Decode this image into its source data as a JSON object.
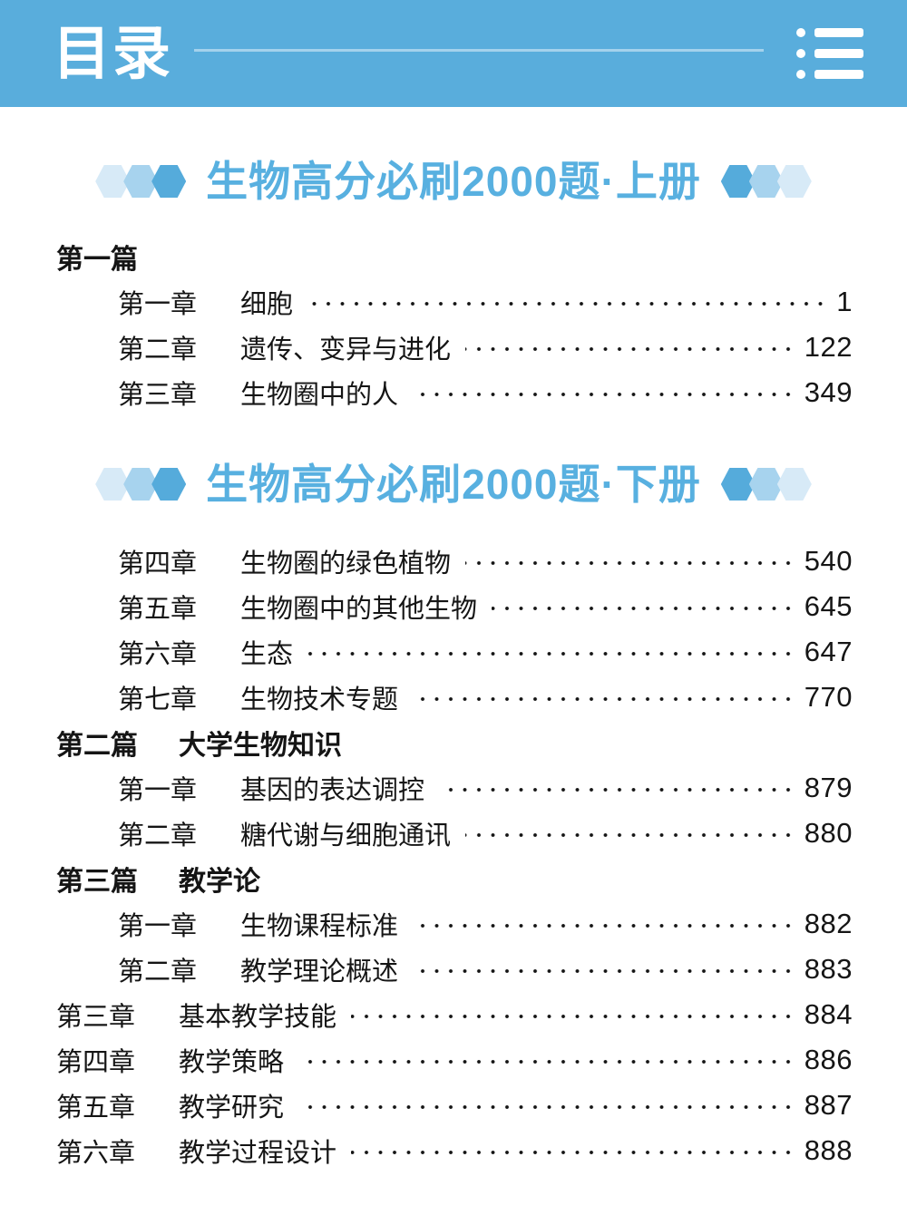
{
  "header": {
    "title": "目录",
    "icon": "list-icon"
  },
  "colors": {
    "header_bg": "#59ADDC",
    "title_blue": "#58B0E0",
    "hex_light": "#D7EAF7",
    "hex_medium": "#A7D3EE",
    "hex_dark": "#55ABDB",
    "ink": "#151515"
  },
  "decoration": {
    "left_hexagons": [
      "light",
      "medium",
      "dark"
    ],
    "right_hexagons": [
      "dark",
      "medium",
      "light"
    ]
  },
  "volumes": [
    {
      "title": "生物高分必刷2000题·上册",
      "entries": [
        {
          "type": "part",
          "indent": false,
          "label": "第一篇",
          "title": "",
          "page": ""
        },
        {
          "type": "chapter",
          "indent": true,
          "label": "第一章",
          "title": "细胞",
          "page": "1"
        },
        {
          "type": "chapter",
          "indent": true,
          "label": "第二章",
          "title": "遗传、变异与进化",
          "page": "122"
        },
        {
          "type": "chapter",
          "indent": true,
          "label": "第三章",
          "title": "生物圈中的人",
          "page": "349"
        }
      ]
    },
    {
      "title": "生物高分必刷2000题·下册",
      "entries": [
        {
          "type": "chapter",
          "indent": true,
          "label": "第四章",
          "title": "生物圈的绿色植物",
          "page": "540"
        },
        {
          "type": "chapter",
          "indent": true,
          "label": "第五章",
          "title": "生物圈中的其他生物",
          "page": "645"
        },
        {
          "type": "chapter",
          "indent": true,
          "label": "第六章",
          "title": "生态",
          "page": "647"
        },
        {
          "type": "chapter",
          "indent": true,
          "label": "第七章",
          "title": "生物技术专题",
          "page": "770"
        },
        {
          "type": "part",
          "indent": false,
          "label": "第二篇",
          "title": "大学生物知识",
          "page": ""
        },
        {
          "type": "chapter",
          "indent": true,
          "label": "第一章",
          "title": "基因的表达调控",
          "page": "879"
        },
        {
          "type": "chapter",
          "indent": true,
          "label": "第二章",
          "title": "糖代谢与细胞通讯",
          "page": "880"
        },
        {
          "type": "part",
          "indent": false,
          "label": "第三篇",
          "title": "教学论",
          "page": ""
        },
        {
          "type": "chapter",
          "indent": true,
          "label": "第一章",
          "title": "生物课程标准",
          "page": "882"
        },
        {
          "type": "chapter",
          "indent": true,
          "label": "第二章",
          "title": "教学理论概述",
          "page": "883"
        },
        {
          "type": "chapter",
          "indent": false,
          "label": "第三章",
          "title": "基本教学技能",
          "page": "884"
        },
        {
          "type": "chapter",
          "indent": false,
          "label": "第四章",
          "title": "教学策略",
          "page": "886"
        },
        {
          "type": "chapter",
          "indent": false,
          "label": "第五章",
          "title": "教学研究",
          "page": "887"
        },
        {
          "type": "chapter",
          "indent": false,
          "label": "第六章",
          "title": "教学过程设计",
          "page": "888"
        }
      ]
    }
  ]
}
